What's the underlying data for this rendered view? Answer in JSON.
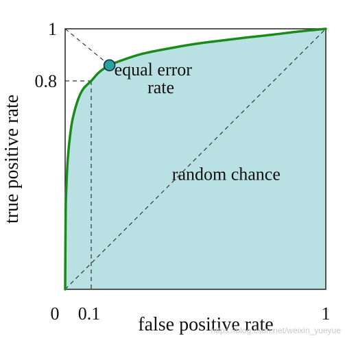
{
  "chart_data": {
    "type": "area",
    "xlabel": "false positive rate",
    "ylabel": "true positive rate",
    "xlim": [
      0,
      1
    ],
    "ylim": [
      0,
      1
    ],
    "x_ticks": [
      {
        "value": 0,
        "label": "0"
      },
      {
        "value": 0.1,
        "label": "0.1"
      },
      {
        "value": 1,
        "label": "1"
      }
    ],
    "y_ticks": [
      {
        "value": 0.8,
        "label": "0.8"
      },
      {
        "value": 1,
        "label": "1"
      }
    ],
    "grid": false,
    "series": [
      {
        "color": "#1a8a1a",
        "fill": "#b9e0e2",
        "x": [
          0,
          0.002,
          0.005,
          0.01,
          0.02,
          0.03,
          0.05,
          0.07,
          0.1,
          0.13,
          0.17,
          0.22,
          0.3,
          0.4,
          0.5,
          0.6,
          0.7,
          0.8,
          0.9,
          1
        ],
        "y": [
          0,
          0.3,
          0.4,
          0.5,
          0.6,
          0.66,
          0.73,
          0.77,
          0.8,
          0.833,
          0.86,
          0.88,
          0.905,
          0.925,
          0.942,
          0.955,
          0.967,
          0.978,
          0.99,
          1
        ]
      }
    ],
    "random_chance_line": {
      "x": [
        0,
        1
      ],
      "y": [
        0,
        1
      ],
      "label": "random chance",
      "color": "#333333"
    },
    "eer_line": {
      "x": [
        0,
        1
      ],
      "y": [
        1,
        0
      ],
      "color": "#333333"
    },
    "equal_error_rate": {
      "x": 0.17,
      "y": 0.86,
      "label_line1": "equal error",
      "label_line2": "rate",
      "color": "#2aa1a1"
    },
    "reference_point": {
      "x": 0.1,
      "y": 0.8
    }
  },
  "watermark": "https://blog.csdn.net/weixin_yueyue"
}
